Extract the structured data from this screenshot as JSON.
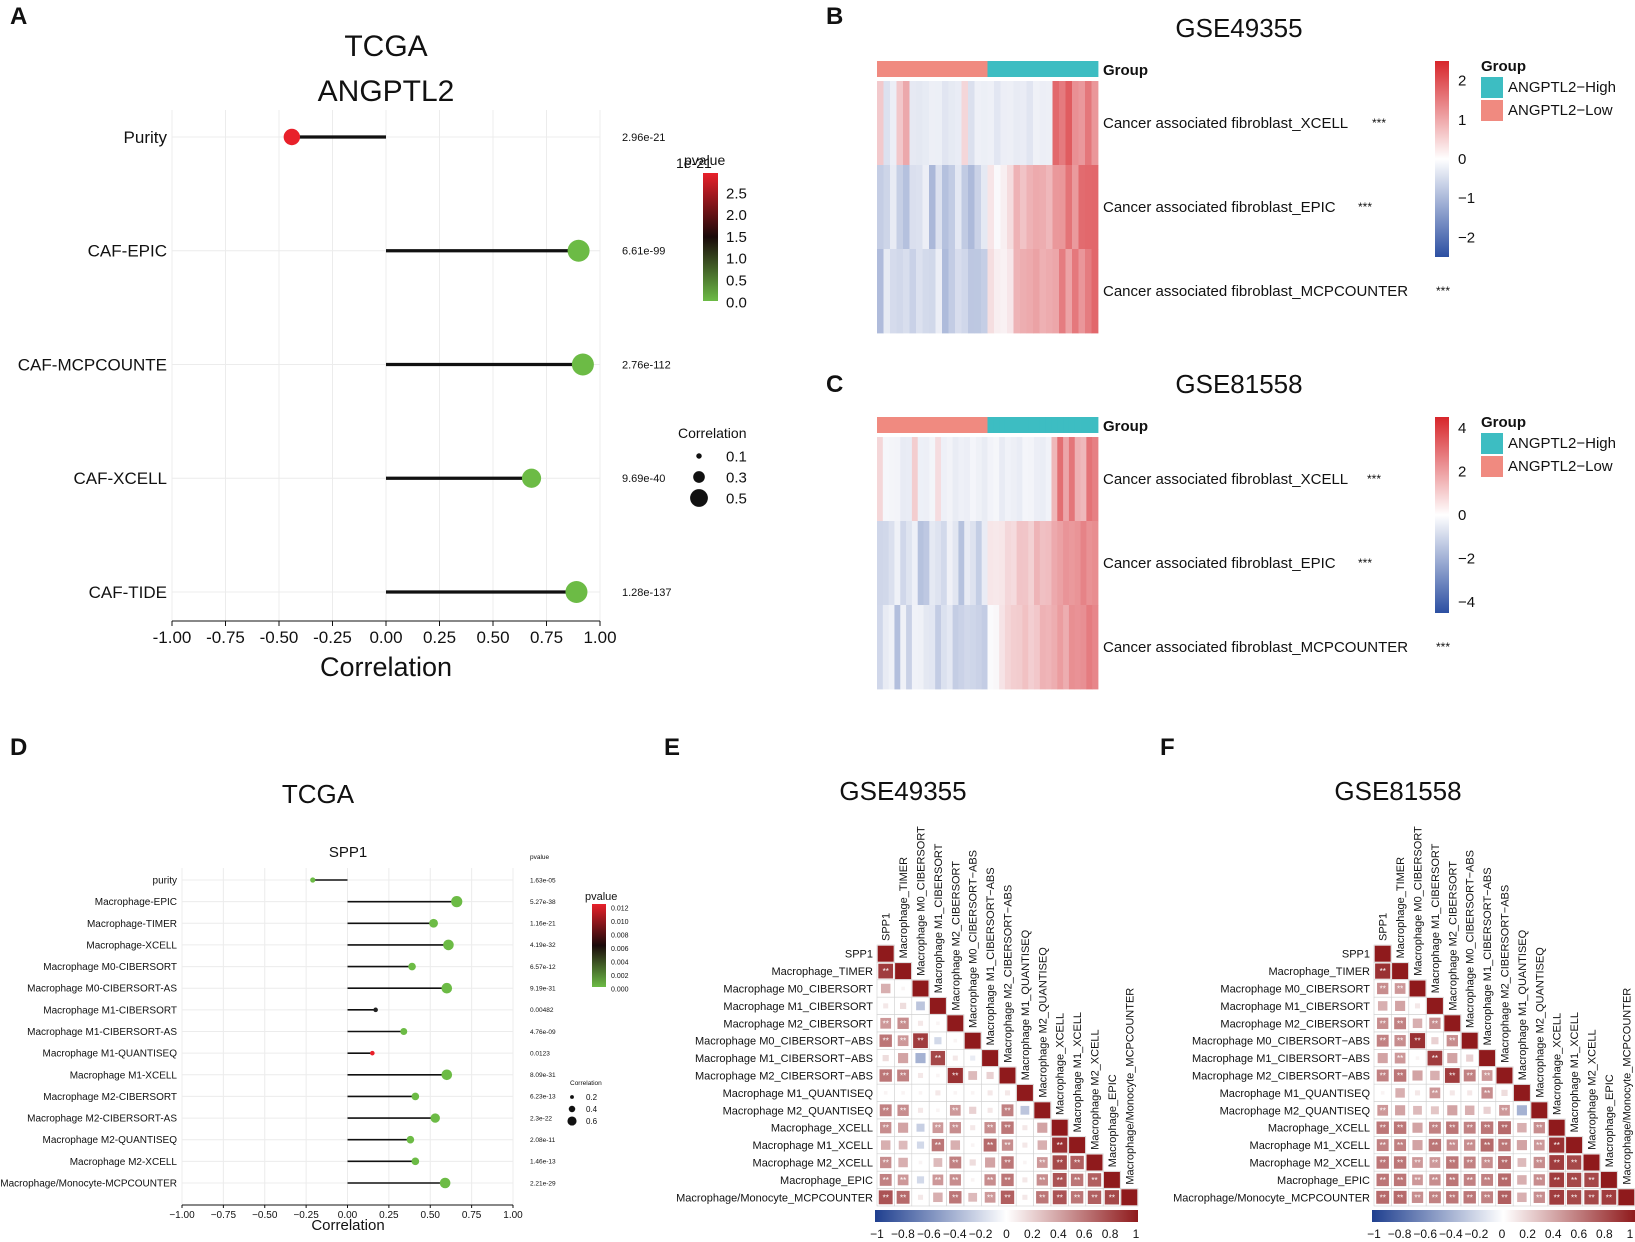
{
  "panel_letters": {
    "A": "A",
    "B": "B",
    "C": "C",
    "D": "D",
    "E": "E",
    "F": "F"
  },
  "chart_data": [
    {
      "id": "A",
      "type": "lollipop",
      "title_line1": "TCGA",
      "title_line2": "ANGPTL2",
      "xlabel": "Correlation",
      "xlim": [
        -1.0,
        1.0
      ],
      "xticks": [
        "-1.00",
        "-0.75",
        "-0.50",
        "-0.25",
        "0.00",
        "0.25",
        "0.50",
        "0.75",
        "1.00"
      ],
      "rows": [
        {
          "label": "Purity",
          "value": -0.44,
          "pvalue_text": "2.96e-21",
          "color": "#e8202a",
          "size_level": 0.3
        },
        {
          "label": "CAF-EPIC",
          "value": 0.9,
          "pvalue_text": "6.61e-99",
          "color": "#6cbb45",
          "size_level": 0.5
        },
        {
          "label": "CAF-MCPCOUNTE",
          "value": 0.92,
          "pvalue_text": "2.76e-112",
          "color": "#6cbb45",
          "size_level": 0.5
        },
        {
          "label": "CAF-XCELL",
          "value": 0.68,
          "pvalue_text": "9.69e-40",
          "color": "#6cbb45",
          "size_level": 0.4
        },
        {
          "label": "CAF-TIDE",
          "value": 0.89,
          "pvalue_text": "1.28e-137",
          "color": "#6cbb45",
          "size_level": 0.5
        }
      ],
      "pvalue_legend": {
        "title": "pvalue",
        "exponent": "1e-21",
        "ticks": [
          "2.5",
          "2.0",
          "1.5",
          "1.0",
          "0.5",
          "0.0"
        ]
      },
      "size_legend": {
        "title": "Correlation",
        "entries": [
          "0.1",
          "0.3",
          "0.5"
        ]
      }
    },
    {
      "id": "B",
      "type": "heatmap",
      "title": "GSE49355",
      "group_label": "Group",
      "rows": [
        {
          "label": "Cancer associated fibroblast_XCELL",
          "sig": "***"
        },
        {
          "label": "Cancer associated fibroblast_EPIC",
          "sig": "***"
        },
        {
          "label": "Cancer associated fibroblast_MCPCOUNTER",
          "sig": "***"
        }
      ],
      "n_low": 17,
      "n_high": 17,
      "color_scale": {
        "ticks": [
          "2",
          "1",
          "0",
          "−1",
          "−2"
        ],
        "min": -2.5,
        "max": 2.5
      },
      "group_legend": {
        "title": "Group",
        "entries": [
          {
            "label": "ANGPTL2−High",
            "color": "#3dbdc2"
          },
          {
            "label": "ANGPTL2−Low",
            "color": "#f08a80"
          }
        ]
      }
    },
    {
      "id": "C",
      "type": "heatmap",
      "title": "GSE81558",
      "group_label": "Group",
      "rows": [
        {
          "label": "Cancer associated fibroblast_XCELL",
          "sig": "***"
        },
        {
          "label": "Cancer associated fibroblast_EPIC",
          "sig": "***"
        },
        {
          "label": "Cancer associated fibroblast_MCPCOUNTER",
          "sig": "***"
        }
      ],
      "n_low": 19,
      "n_high": 19,
      "color_scale": {
        "ticks": [
          "4",
          "2",
          "0",
          "−2",
          "−4"
        ],
        "min": -4.5,
        "max": 4.5
      },
      "group_legend": {
        "title": "Group",
        "entries": [
          {
            "label": "ANGPTL2−High",
            "color": "#3dbdc2"
          },
          {
            "label": "ANGPTL2−Low",
            "color": "#f08a80"
          }
        ]
      }
    },
    {
      "id": "D",
      "type": "lollipop",
      "title": "TCGA",
      "subtitle": "SPP1",
      "xlabel": "Correlation",
      "xlim": [
        -1.0,
        1.0
      ],
      "xticks": [
        "−1.00",
        "−0.75",
        "−0.50",
        "−0.25",
        "0.00",
        "0.25",
        "0.50",
        "0.75",
        "1.00"
      ],
      "pvalue_header": "pvalue",
      "rows": [
        {
          "label": "purity",
          "value": -0.21,
          "pvalue_text": "1.63e-05",
          "color": "#6cbb45",
          "size_level": 0.1
        },
        {
          "label": "Macrophage-EPIC",
          "value": 0.66,
          "pvalue_text": "5.27e-38",
          "color": "#6cbb45",
          "size_level": 0.6
        },
        {
          "label": "Macrophage-TIMER",
          "value": 0.52,
          "pvalue_text": "1.16e-21",
          "color": "#6cbb45",
          "size_level": 0.4
        },
        {
          "label": "Macrophage-XCELL",
          "value": 0.61,
          "pvalue_text": "4.19e-32",
          "color": "#6cbb45",
          "size_level": 0.55
        },
        {
          "label": "Macrophage M0-CIBERSORT",
          "value": 0.39,
          "pvalue_text": "6.57e-12",
          "color": "#6cbb45",
          "size_level": 0.3
        },
        {
          "label": "Macrophage M0-CIBERSORT-AS",
          "value": 0.6,
          "pvalue_text": "9.19e-31",
          "color": "#6cbb45",
          "size_level": 0.55
        },
        {
          "label": "Macrophage M1-CIBERSORT",
          "value": 0.17,
          "pvalue_text": "0.00482",
          "color": "#222222",
          "size_level": 0.05
        },
        {
          "label": "Macrophage M1-CIBERSORT-AS",
          "value": 0.34,
          "pvalue_text": "4.76e-09",
          "color": "#6cbb45",
          "size_level": 0.25
        },
        {
          "label": "Macrophage M1-QUANTISEQ",
          "value": 0.15,
          "pvalue_text": "0.0123",
          "color": "#e8202a",
          "size_level": 0.05
        },
        {
          "label": "Macrophage M1-XCELL",
          "value": 0.6,
          "pvalue_text": "8.09e-31",
          "color": "#6cbb45",
          "size_level": 0.55
        },
        {
          "label": "Macrophage M2-CIBERSORT",
          "value": 0.41,
          "pvalue_text": "6.23e-13",
          "color": "#6cbb45",
          "size_level": 0.3
        },
        {
          "label": "Macrophage M2-CIBERSORT-AS",
          "value": 0.53,
          "pvalue_text": "2.3e-22",
          "color": "#6cbb45",
          "size_level": 0.45
        },
        {
          "label": "Macrophage M2-QUANTISEQ",
          "value": 0.38,
          "pvalue_text": "2.08e-11",
          "color": "#6cbb45",
          "size_level": 0.3
        },
        {
          "label": "Macrophage M2-XCELL",
          "value": 0.41,
          "pvalue_text": "1.46e-13",
          "color": "#6cbb45",
          "size_level": 0.3
        },
        {
          "label": "Macrophage/Monocyte-MCPCOUNTER",
          "value": 0.59,
          "pvalue_text": "2.21e-29",
          "color": "#6cbb45",
          "size_level": 0.55
        }
      ],
      "pvalue_legend": {
        "title": "pvalue",
        "ticks": [
          "0.012",
          "0.010",
          "0.008",
          "0.006",
          "0.004",
          "0.002",
          "0.000"
        ]
      },
      "size_legend": {
        "title": "Correlation",
        "entries": [
          "0.2",
          "0.4",
          "0.6"
        ]
      }
    },
    {
      "id": "E",
      "type": "correlation_matrix",
      "title": "GSE49355",
      "labels": [
        "SPP1",
        "Macrophage_TIMER",
        "Macrophage M0_CIBERSORT",
        "Macrophage M1_CIBERSORT",
        "Macrophage M2_CIBERSORT",
        "Macrophage M0_CIBERSORT−ABS",
        "Macrophage M1_CIBERSORT−ABS",
        "Macrophage M2_CIBERSORT−ABS",
        "Macrophage M1_QUANTISEQ",
        "Macrophage M2_QUANTISEQ",
        "Macrophage_XCELL",
        "Macrophage M1_XCELL",
        "Macrophage M2_XCELL",
        "Macrophage_EPIC",
        "Macrophage/Monocyte_MCPCOUNTER"
      ],
      "scale_ticks": [
        "−1",
        "−0.8",
        "−0.6",
        "−0.4",
        "−0.2",
        "0",
        "0.2",
        "0.4",
        "0.6",
        "0.8",
        "1"
      ],
      "lower_triangle": [
        [
          1.0
        ],
        [
          0.85,
          1.0
        ],
        [
          0.35,
          0.05,
          1.0
        ],
        [
          0.1,
          0.15,
          -0.3,
          1.0
        ],
        [
          0.45,
          0.5,
          0.1,
          0.05,
          1.0
        ],
        [
          0.6,
          0.45,
          0.85,
          -0.2,
          0.05,
          1.0
        ],
        [
          0.15,
          0.4,
          -0.4,
          0.8,
          0.1,
          -0.1,
          1.0
        ],
        [
          0.6,
          0.55,
          0.1,
          0.05,
          0.9,
          0.3,
          0.2,
          1.0
        ],
        [
          0.05,
          0.05,
          0.05,
          0.1,
          0.05,
          0.05,
          0.1,
          0.1,
          1.0
        ],
        [
          0.55,
          0.5,
          0.1,
          0.05,
          0.45,
          0.2,
          0.1,
          0.55,
          -0.3,
          1.0
        ],
        [
          0.5,
          0.4,
          -0.25,
          0.45,
          0.5,
          0.1,
          0.5,
          0.6,
          0.1,
          0.4,
          1.0
        ],
        [
          0.35,
          0.3,
          -0.2,
          0.6,
          0.35,
          0.05,
          0.65,
          0.5,
          0.1,
          0.35,
          0.9,
          1.0
        ],
        [
          0.5,
          0.35,
          0.05,
          0.3,
          0.55,
          0.15,
          0.4,
          0.6,
          0.05,
          0.45,
          0.8,
          0.7,
          1.0
        ],
        [
          0.55,
          0.45,
          -0.2,
          0.45,
          0.5,
          0.05,
          0.5,
          0.6,
          0.1,
          0.5,
          0.75,
          0.6,
          0.7,
          1.0
        ],
        [
          0.75,
          0.65,
          0.1,
          0.35,
          0.6,
          0.3,
          0.45,
          0.7,
          0.1,
          0.6,
          0.75,
          0.6,
          0.7,
          0.8,
          1.0
        ]
      ]
    },
    {
      "id": "F",
      "type": "correlation_matrix",
      "title": "GSE81558",
      "labels": [
        "SPP1",
        "Macrophage_TIMER",
        "Macrophage M0_CIBERSORT",
        "Macrophage M1_CIBERSORT",
        "Macrophage M2_CIBERSORT",
        "Macrophage M0_CIBERSORT−ABS",
        "Macrophage M1_CIBERSORT−ABS",
        "Macrophage M2_CIBERSORT−ABS",
        "Macrophage M1_QUANTISEQ",
        "Macrophage M2_QUANTISEQ",
        "Macrophage_XCELL",
        "Macrophage M1_XCELL",
        "Macrophage M2_XCELL",
        "Macrophage_EPIC",
        "Macrophage/Monocyte_MCPCOUNTER"
      ],
      "scale_ticks": [
        "−1",
        "−0.8",
        "−0.6",
        "−0.4",
        "−0.2",
        "0",
        "0.2",
        "0.4",
        "0.6",
        "0.8",
        "1"
      ],
      "lower_triangle": [
        [
          1.0
        ],
        [
          0.9,
          1.0
        ],
        [
          0.5,
          0.45,
          1.0
        ],
        [
          0.35,
          0.4,
          0.1,
          1.0
        ],
        [
          0.5,
          0.55,
          0.35,
          0.5,
          1.0
        ],
        [
          0.55,
          0.5,
          0.9,
          0.2,
          0.5,
          1.0
        ],
        [
          0.4,
          0.45,
          0.05,
          0.85,
          0.4,
          0.2,
          1.0
        ],
        [
          0.55,
          0.6,
          0.4,
          0.35,
          0.85,
          0.55,
          0.45,
          1.0
        ],
        [
          0.05,
          0.35,
          0.1,
          0.45,
          0.1,
          0.1,
          0.5,
          0.15,
          1.0
        ],
        [
          0.45,
          0.4,
          0.3,
          0.25,
          0.4,
          0.35,
          0.2,
          0.45,
          -0.4,
          1.0
        ],
        [
          0.6,
          0.6,
          0.4,
          0.55,
          0.6,
          0.55,
          0.6,
          0.65,
          0.35,
          0.5,
          1.0
        ],
        [
          0.55,
          0.55,
          0.4,
          0.6,
          0.5,
          0.5,
          0.65,
          0.6,
          0.4,
          0.45,
          0.9,
          1.0
        ],
        [
          0.6,
          0.6,
          0.45,
          0.45,
          0.6,
          0.55,
          0.5,
          0.65,
          0.3,
          0.5,
          0.85,
          0.8,
          1.0
        ],
        [
          0.6,
          0.6,
          0.45,
          0.5,
          0.6,
          0.55,
          0.55,
          0.65,
          0.35,
          0.5,
          0.85,
          0.8,
          0.8,
          1.0
        ],
        [
          0.65,
          0.65,
          0.5,
          0.55,
          0.6,
          0.6,
          0.55,
          0.7,
          0.35,
          0.5,
          0.85,
          0.8,
          0.8,
          0.85,
          1.0
        ]
      ]
    }
  ]
}
